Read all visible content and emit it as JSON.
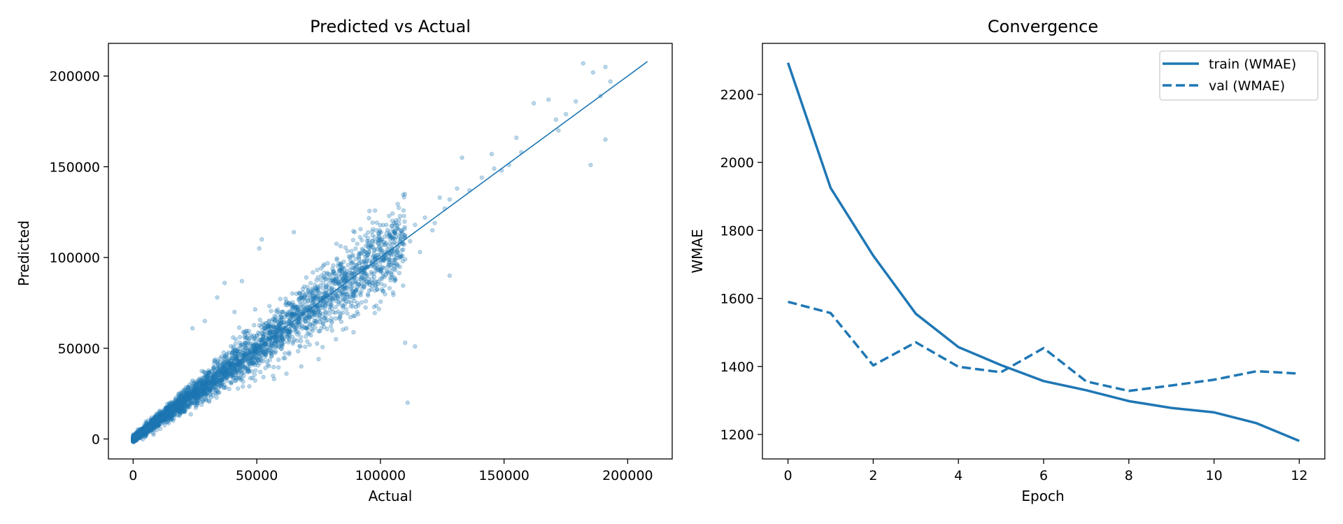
{
  "colors": {
    "series": "#1f77b4",
    "axis": "#000000",
    "background": "#ffffff"
  },
  "chart_data": [
    {
      "type": "scatter",
      "title": "Predicted vs Actual",
      "xlabel": "Actual",
      "ylabel": "Predicted",
      "xlim": [
        -10000,
        218000
      ],
      "ylim": [
        -11000,
        218000
      ],
      "xticks": [
        0,
        50000,
        100000,
        150000,
        200000
      ],
      "xtick_labels": [
        "0",
        "50000",
        "100000",
        "150000",
        "200000"
      ],
      "yticks": [
        0,
        50000,
        100000,
        150000,
        200000
      ],
      "ytick_labels": [
        "0",
        "50000",
        "100000",
        "150000",
        "200000"
      ],
      "grid": false,
      "reference_line": {
        "from": [
          0,
          0
        ],
        "to": [
          208000,
          208000
        ]
      },
      "marker_alpha": 0.3,
      "points": [
        [
          182000,
          207000
        ],
        [
          191000,
          205000
        ],
        [
          186000,
          202000
        ],
        [
          193000,
          197000
        ],
        [
          179000,
          186000
        ],
        [
          189000,
          189000
        ],
        [
          162000,
          185000
        ],
        [
          168000,
          187000
        ],
        [
          175000,
          179000
        ],
        [
          171000,
          176000
        ],
        [
          185000,
          151000
        ],
        [
          191000,
          165000
        ],
        [
          155000,
          166000
        ],
        [
          157000,
          158000
        ],
        [
          172000,
          170000
        ],
        [
          145000,
          157000
        ],
        [
          149000,
          148000
        ],
        [
          152000,
          151000
        ],
        [
          141000,
          144000
        ],
        [
          136000,
          137000
        ],
        [
          131000,
          138000
        ],
        [
          133000,
          155000
        ],
        [
          146000,
          149000
        ],
        [
          128000,
          132000
        ],
        [
          124000,
          133000
        ],
        [
          118000,
          122000
        ],
        [
          126000,
          127000
        ],
        [
          122000,
          119000
        ],
        [
          114000,
          118000
        ],
        [
          112000,
          109000
        ],
        [
          108000,
          113000
        ],
        [
          106000,
          104000
        ],
        [
          102000,
          101000
        ],
        [
          97000,
          96000
        ],
        [
          110000,
          99000
        ],
        [
          105000,
          97000
        ],
        [
          100000,
          103000
        ],
        [
          121000,
          115000
        ],
        [
          116000,
          103000
        ],
        [
          128000,
          90000
        ],
        [
          110000,
          53000
        ],
        [
          114000,
          51000
        ],
        [
          111000,
          20000
        ],
        [
          65000,
          114000
        ],
        [
          52000,
          110000
        ],
        [
          51000,
          105000
        ],
        [
          44000,
          87000
        ],
        [
          37000,
          86000
        ],
        [
          34000,
          78000
        ],
        [
          41000,
          70000
        ],
        [
          29000,
          65000
        ],
        [
          24000,
          61000
        ],
        [
          68000,
          40000
        ],
        [
          75000,
          44000
        ],
        [
          82000,
          55000
        ],
        [
          62000,
          36000
        ],
        [
          57000,
          33000
        ],
        [
          47000,
          29000
        ],
        [
          95000,
          79000
        ],
        [
          92000,
          84000
        ],
        [
          70000,
          89000
        ],
        [
          76000,
          94000
        ],
        [
          60000,
          70000
        ],
        [
          56000,
          61000
        ],
        [
          80000,
          65000
        ]
      ],
      "dense_band": {
        "count": 3800,
        "x_max": 110000,
        "slope": 1.0,
        "spread": 0.1
      }
    },
    {
      "type": "line",
      "title": "Convergence",
      "xlabel": "Epoch",
      "ylabel": "WMAE",
      "xlim": [
        -0.6,
        12.6
      ],
      "ylim": [
        1128,
        2350
      ],
      "xticks": [
        0,
        2,
        4,
        6,
        8,
        10,
        12
      ],
      "yticks": [
        1200,
        1400,
        1600,
        1800,
        2000,
        2200
      ],
      "grid": false,
      "legend_position": "top-right",
      "x": [
        0,
        1,
        2,
        3,
        4,
        5,
        6,
        7,
        8,
        9,
        10,
        11,
        12
      ],
      "series": [
        {
          "name": "train (WMAE)",
          "style": "solid",
          "values": [
            2293,
            1925,
            1726,
            1555,
            1457,
            1404,
            1357,
            1330,
            1298,
            1278,
            1265,
            1233,
            1181
          ]
        },
        {
          "name": "val (WMAE)",
          "style": "dashed",
          "values": [
            1590,
            1557,
            1403,
            1471,
            1399,
            1383,
            1454,
            1356,
            1328,
            1344,
            1361,
            1386,
            1379
          ]
        }
      ]
    }
  ]
}
